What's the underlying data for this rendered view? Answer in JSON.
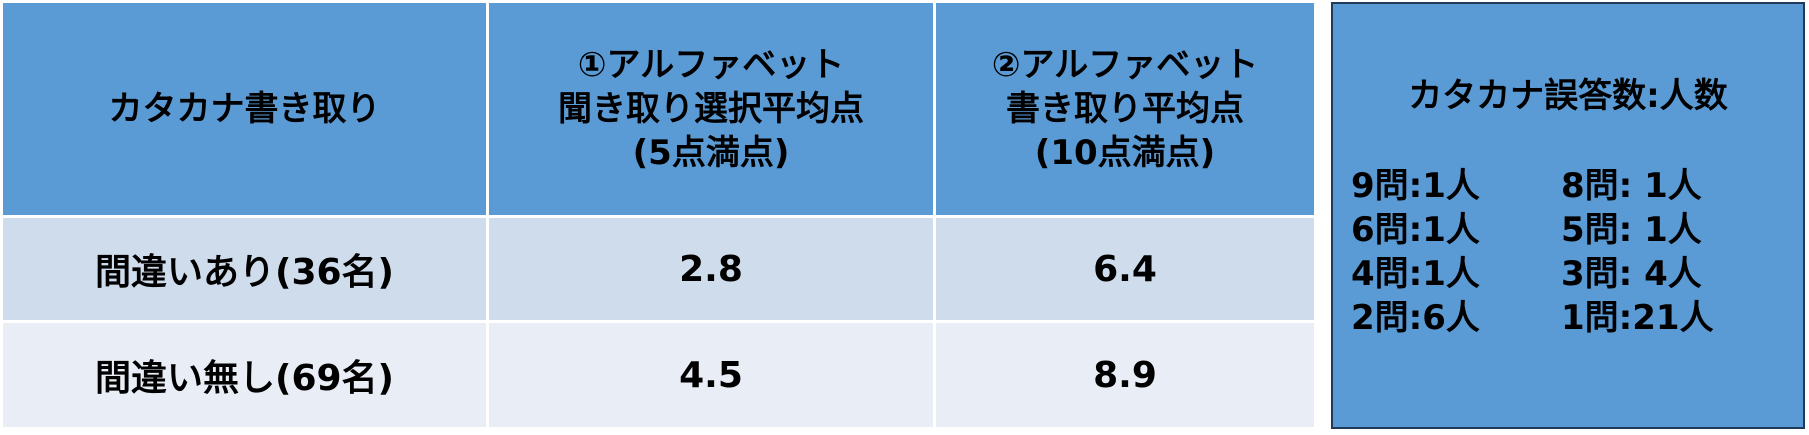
{
  "table": {
    "headers": {
      "col0": "カタカナ書き取り",
      "col1_line1": "①アルファベット",
      "col1_line2": "聞き取り選択平均点",
      "col1_line3": "(5点満点)",
      "col2_line1": "②アルファベット",
      "col2_line2": "書き取り平均点",
      "col2_line3": "(10点満点)"
    },
    "rows": [
      {
        "label": "間違いあり(36名)",
        "listening_avg": "2.8",
        "writing_avg": "6.4"
      },
      {
        "label": "間違い無し(69名)",
        "listening_avg": "4.5",
        "writing_avg": "8.9"
      }
    ]
  },
  "sidebox": {
    "title": "カタカナ誤答数:人数",
    "items": [
      "9問:1人",
      "8問: 1人",
      "6問:1人",
      "5問: 1人",
      "4問:1人",
      "3問: 4人",
      "2問:6人",
      "1問:21人"
    ]
  },
  "colors": {
    "header_blue": "#5b9bd5",
    "row1": "#cfdcec",
    "row2": "#e8edf6"
  }
}
